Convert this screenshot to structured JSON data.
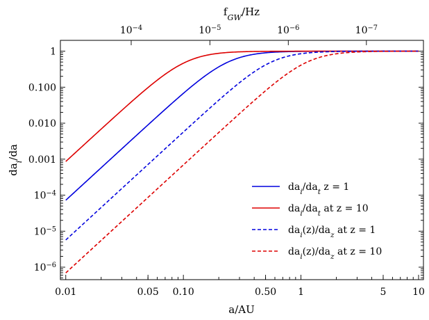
{
  "chart_data": {
    "type": "line",
    "xlabel": "a/AU",
    "ylabel": "da_i/da",
    "top_axis_label": "f_GW/Hz",
    "x_scale": "log",
    "y_scale": "log",
    "xlim": [
      0.009,
      11
    ],
    "ylim": [
      4.5e-07,
      2.0
    ],
    "x_ticks": [
      {
        "value": 0.01,
        "label": "0.01"
      },
      {
        "value": 0.05,
        "label": "0.05"
      },
      {
        "value": 0.1,
        "label": "0.10"
      },
      {
        "value": 0.5,
        "label": "0.50"
      },
      {
        "value": 1,
        "label": "1"
      },
      {
        "value": 5,
        "label": "5"
      },
      {
        "value": 10,
        "label": "10"
      }
    ],
    "y_ticks": [
      {
        "value": 1,
        "label": "1"
      },
      {
        "value": 0.1,
        "label": "0.100"
      },
      {
        "value": 0.01,
        "label": "0.010"
      },
      {
        "value": 0.001,
        "label": "0.001"
      },
      {
        "value": 0.0001,
        "label": "10^-4"
      },
      {
        "value": 1e-05,
        "label": "10^-5"
      },
      {
        "value": 1e-06,
        "label": "10^-6"
      }
    ],
    "top_ticks": [
      {
        "a_value": 0.036,
        "label": "10^-4"
      },
      {
        "a_value": 0.168,
        "label": "10^-5"
      },
      {
        "a_value": 0.78,
        "label": "10^-6"
      },
      {
        "a_value": 3.6,
        "label": "10^-7"
      }
    ],
    "series": [
      {
        "name": "da_i/da_t z = 1",
        "color": "#0000dd",
        "dash": "solid",
        "a_knee": 0.24
      },
      {
        "name": "da_i/da_t at z = 10",
        "color": "#dd0000",
        "dash": "solid",
        "a_knee": 0.105
      },
      {
        "name": "da_i(z)/da_z at z = 1",
        "color": "#0000dd",
        "dash": "dashed",
        "a_knee": 0.56
      },
      {
        "name": "da_i(z)/da_z at z = 10",
        "color": "#dd0000",
        "dash": "dashed",
        "a_knee": 1.13
      }
    ],
    "curve_formula": "y = (a/a_knee)^3 / (1 + (a/a_knee)^3)",
    "legend_position": "bottom-right",
    "grid": false
  }
}
